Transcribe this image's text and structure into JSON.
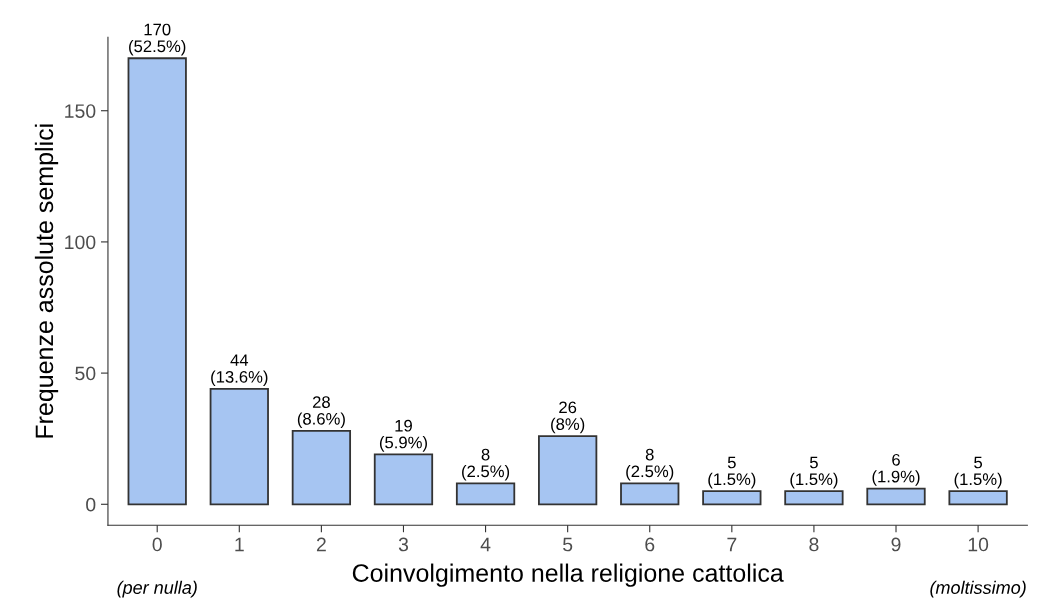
{
  "chart_data": {
    "type": "bar",
    "xlabel": "Coinvolgimento nella religione cattolica",
    "ylabel": "Frequenze assolute semplici",
    "categories": [
      "0",
      "1",
      "2",
      "3",
      "4",
      "5",
      "6",
      "7",
      "8",
      "9",
      "10"
    ],
    "values": [
      170,
      44,
      28,
      19,
      8,
      26,
      8,
      5,
      5,
      6,
      5
    ],
    "value_labels": [
      "170\n(52.5%)",
      "44\n(13.6%)",
      "28\n(8.6%)",
      "19\n(5.9%)",
      "8\n(2.5%)",
      "26\n(8%)",
      "8\n(2.5%)",
      "5\n(1.5%)",
      "5\n(1.5%)",
      "6\n(1.9%)",
      "5\n(1.5%)"
    ],
    "color": "#a6c5f2",
    "ylim": [
      -8,
      178
    ],
    "yticks": [
      0,
      50,
      100,
      150
    ],
    "grid": false,
    "annotations": [
      "(per nulla)",
      "(moltissimo)"
    ]
  }
}
